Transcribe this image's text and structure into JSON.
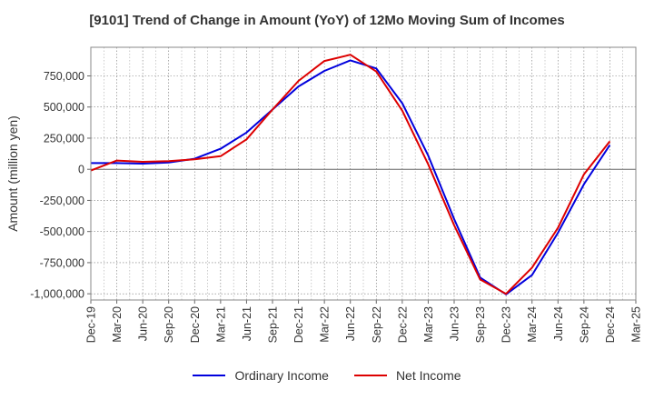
{
  "chart_data": {
    "type": "line",
    "title": "[9101]  Trend of Change in Amount (YoY) of 12Mo Moving Sum of Incomes",
    "xlabel": "",
    "ylabel": "Amount (million yen)",
    "ylim": [
      -1050000,
      980000
    ],
    "yticks": [
      -1000000,
      -750000,
      -500000,
      -250000,
      0,
      250000,
      500000,
      750000
    ],
    "ytick_labels": [
      "-1,000,000",
      "-750,000",
      "-500,000",
      "-250,000",
      "0",
      "250,000",
      "500,000",
      "750,000"
    ],
    "categories": [
      "Dec-19",
      "Mar-20",
      "Jun-20",
      "Sep-20",
      "Dec-20",
      "Mar-21",
      "Jun-21",
      "Sep-21",
      "Dec-21",
      "Mar-22",
      "Jun-22",
      "Sep-22",
      "Dec-22",
      "Mar-23",
      "Jun-23",
      "Sep-23",
      "Dec-23",
      "Mar-24",
      "Jun-24",
      "Sep-24",
      "Dec-24",
      "Mar-25"
    ],
    "grid": true,
    "legend_position": "bottom",
    "series": [
      {
        "name": "Ordinary Income",
        "color": "#0000dd",
        "values": [
          50000,
          50000,
          45000,
          55000,
          85000,
          165000,
          295000,
          480000,
          665000,
          790000,
          875000,
          810000,
          530000,
          110000,
          -400000,
          -870000,
          -1005000,
          -850000,
          -510000,
          -120000,
          195000,
          null
        ]
      },
      {
        "name": "Net Income",
        "color": "#dd0000",
        "values": [
          -10000,
          70000,
          60000,
          65000,
          80000,
          105000,
          240000,
          480000,
          710000,
          870000,
          920000,
          785000,
          470000,
          40000,
          -450000,
          -885000,
          -1000000,
          -790000,
          -470000,
          -40000,
          225000,
          null
        ]
      }
    ]
  }
}
